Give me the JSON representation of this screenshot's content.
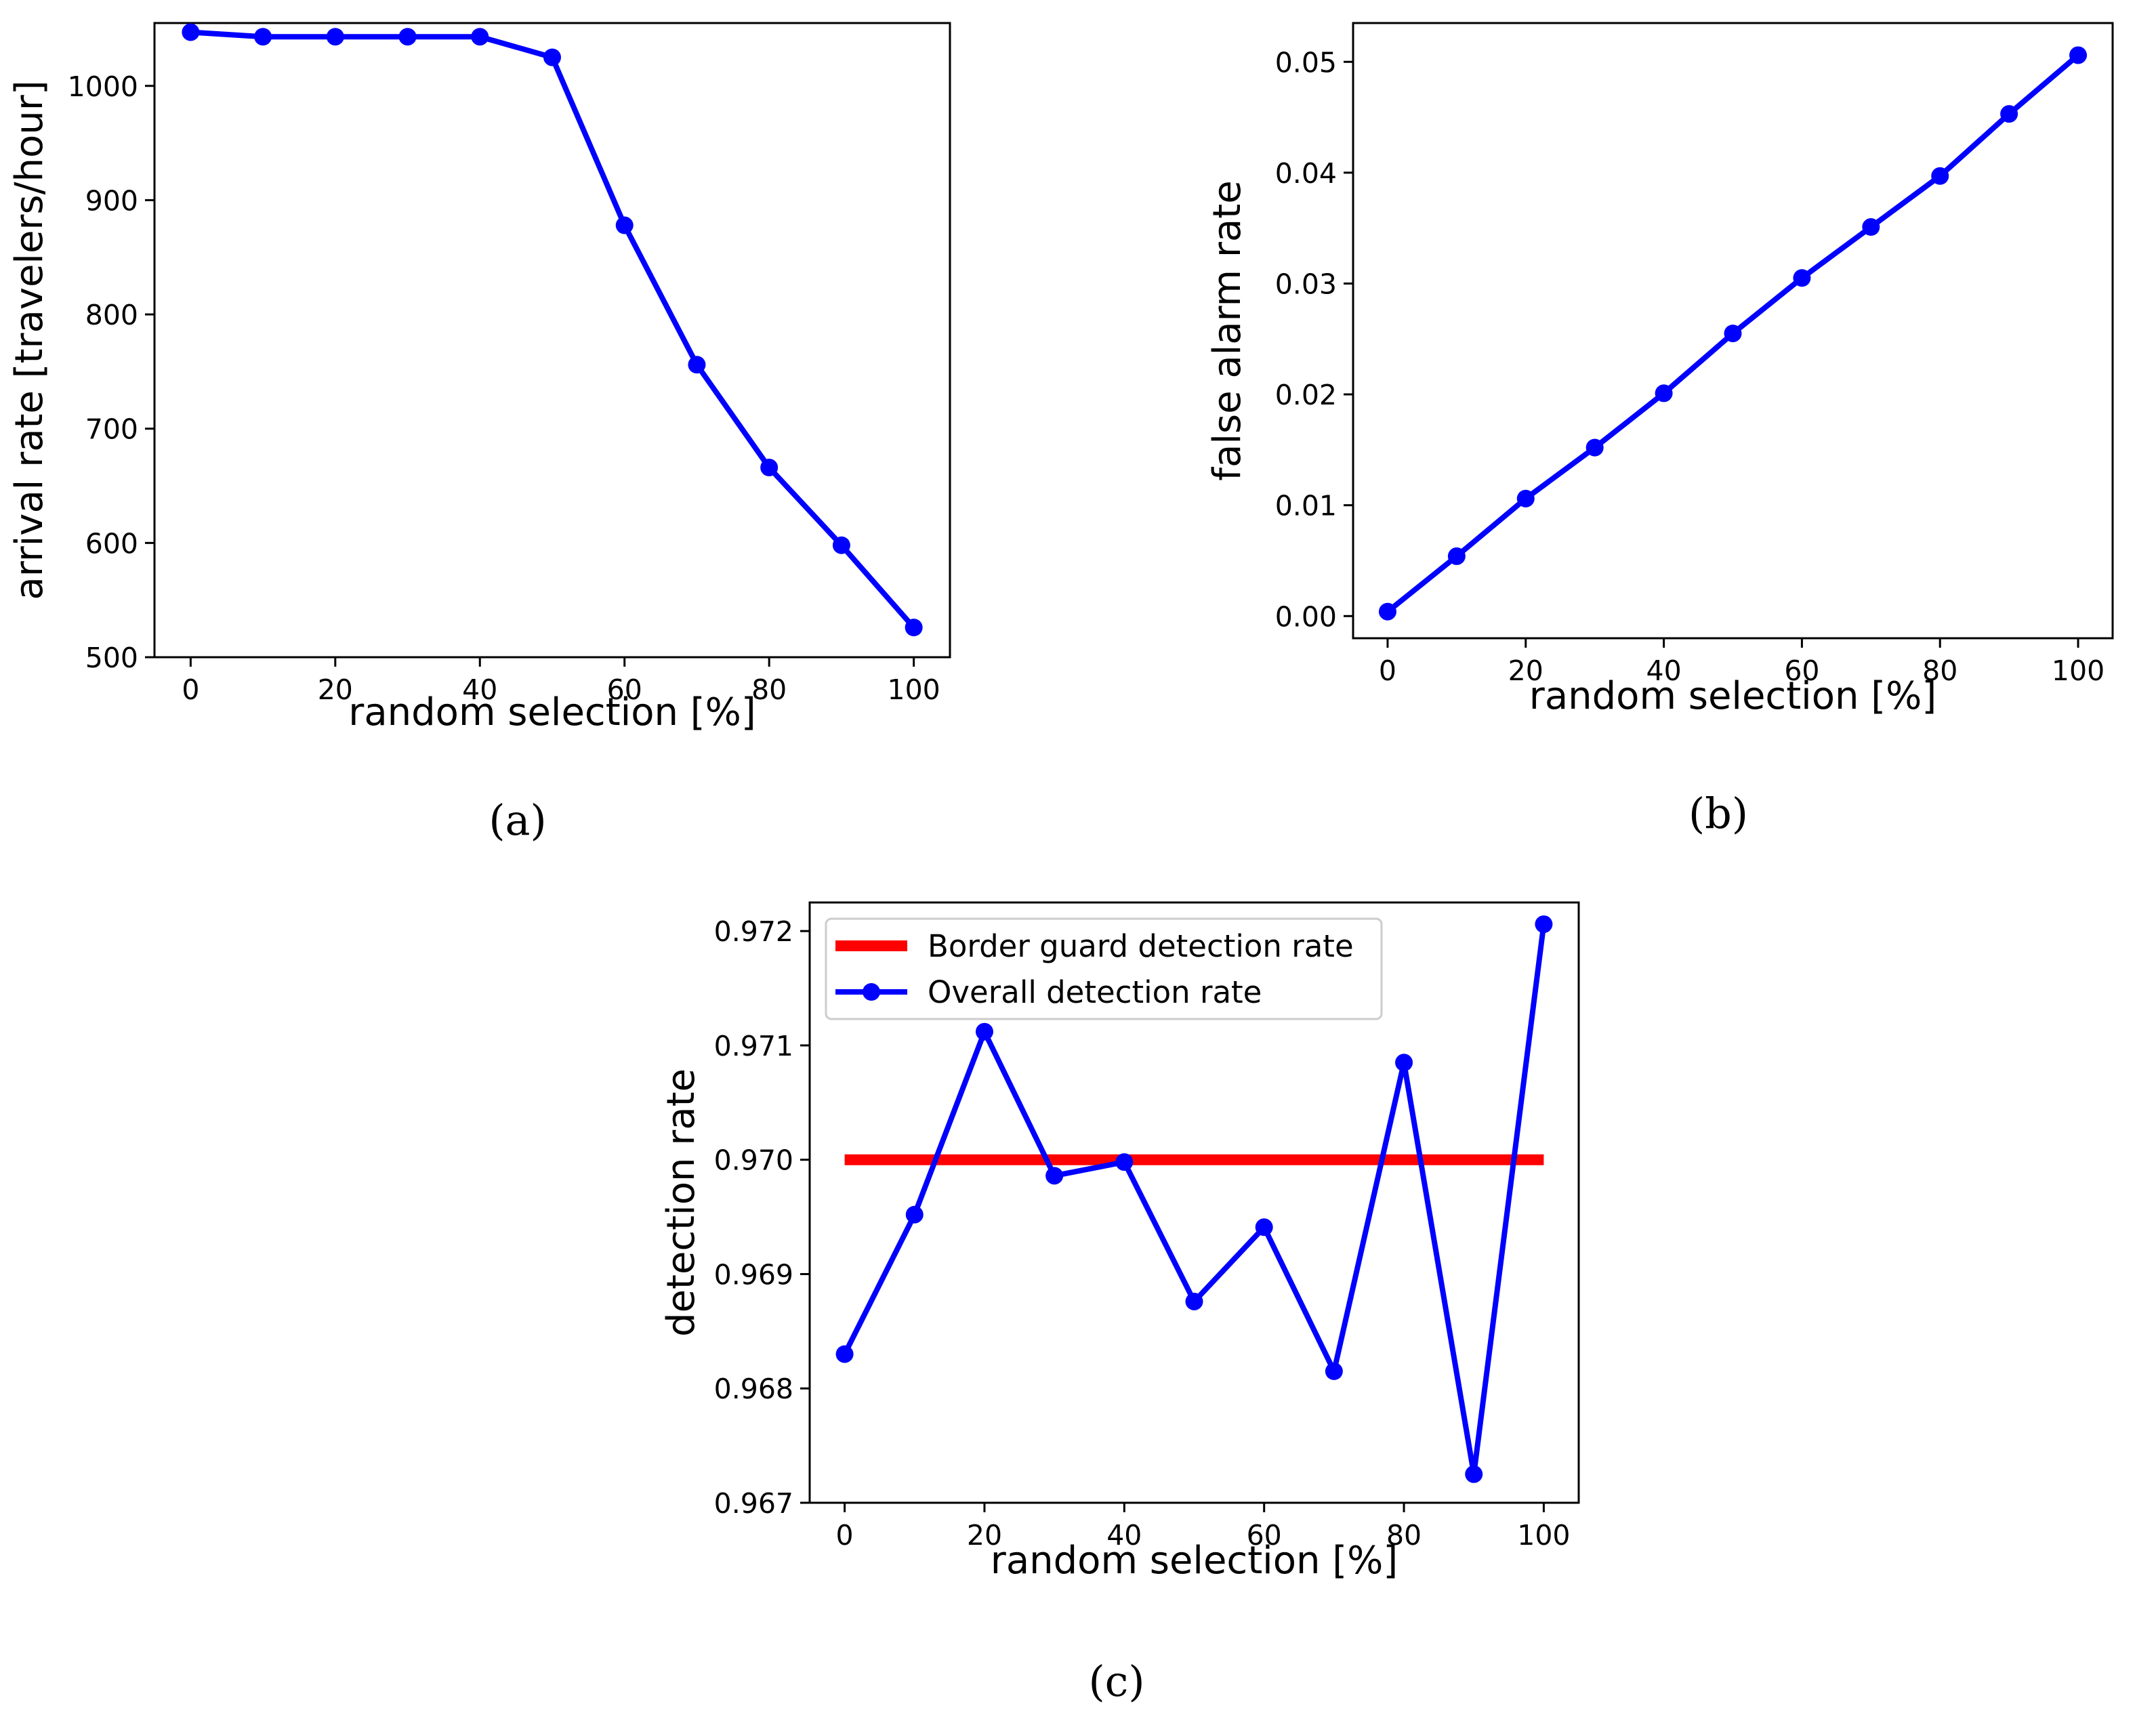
{
  "chart_data": [
    {
      "type": "line",
      "caption": "(a)",
      "xlabel": "random selection [%]",
      "ylabel": "arrival rate [travelers/hour]",
      "xlim": [
        -5,
        105
      ],
      "ylim": [
        500,
        1055
      ],
      "xticks": [
        0,
        20,
        40,
        60,
        80,
        100
      ],
      "yticks": [
        500,
        600,
        700,
        800,
        900,
        1000
      ],
      "xtick_labels": [
        "0",
        "20",
        "40",
        "60",
        "80",
        "100"
      ],
      "ytick_labels": [
        "500",
        "600",
        "700",
        "800",
        "900",
        "1000"
      ],
      "series": [
        {
          "name": "arrival rate",
          "color": "#0000ff",
          "x": [
            0,
            10,
            20,
            30,
            40,
            50,
            60,
            70,
            80,
            90,
            100
          ],
          "values": [
            1047,
            1043,
            1043,
            1043,
            1043,
            1025,
            878,
            756,
            666,
            598,
            526
          ]
        }
      ]
    },
    {
      "type": "line",
      "caption": "(b)",
      "xlabel": "random selection [%]",
      "ylabel": "false alarm rate",
      "xlim": [
        -5,
        105
      ],
      "ylim": [
        -0.002,
        0.0535
      ],
      "xticks": [
        0,
        20,
        40,
        60,
        80,
        100
      ],
      "yticks": [
        0.0,
        0.01,
        0.02,
        0.03,
        0.04,
        0.05
      ],
      "xtick_labels": [
        "0",
        "20",
        "40",
        "60",
        "80",
        "100"
      ],
      "ytick_labels": [
        "0.00",
        "0.01",
        "0.02",
        "0.03",
        "0.04",
        "0.05"
      ],
      "series": [
        {
          "name": "false alarm rate",
          "color": "#0000ff",
          "x": [
            0,
            10,
            20,
            30,
            40,
            50,
            60,
            70,
            80,
            90,
            100
          ],
          "values": [
            0.0004,
            0.0054,
            0.0106,
            0.0152,
            0.0201,
            0.0255,
            0.0305,
            0.0351,
            0.0397,
            0.0453,
            0.0506
          ]
        }
      ]
    },
    {
      "type": "line",
      "caption": "(c)",
      "xlabel": "random selection [%]",
      "ylabel": "detection rate",
      "xlim": [
        -5,
        105
      ],
      "ylim": [
        0.967,
        0.97225
      ],
      "xticks": [
        0,
        20,
        40,
        60,
        80,
        100
      ],
      "yticks": [
        0.967,
        0.968,
        0.969,
        0.97,
        0.971,
        0.972
      ],
      "xtick_labels": [
        "0",
        "20",
        "40",
        "60",
        "80",
        "100"
      ],
      "ytick_labels": [
        "0.967",
        "0.968",
        "0.969",
        "0.970",
        "0.971",
        "0.972"
      ],
      "legend": "top-left",
      "series": [
        {
          "name": "Border guard detection rate",
          "color": "#ff0000",
          "style": "thick-line",
          "x": [
            0,
            100
          ],
          "values": [
            0.97,
            0.97
          ]
        },
        {
          "name": "Overall detection rate",
          "color": "#0000ff",
          "style": "line-markers",
          "x": [
            0,
            10,
            20,
            30,
            40,
            50,
            60,
            70,
            80,
            90,
            100
          ],
          "values": [
            0.9683,
            0.96952,
            0.97112,
            0.96986,
            0.96998,
            0.96876,
            0.96941,
            0.96815,
            0.97085,
            0.96725,
            0.97206
          ]
        }
      ]
    }
  ]
}
